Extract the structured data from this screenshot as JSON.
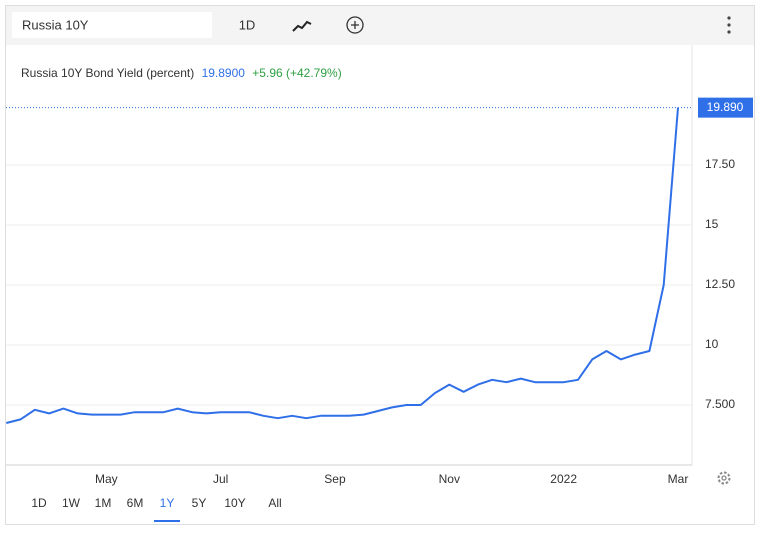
{
  "toolbar": {
    "symbol": "Russia 10Y",
    "interval": "1D"
  },
  "chart_data": {
    "type": "line",
    "title": "Russia 10Y Bond Yield (percent)",
    "last_value": "19.8900",
    "change": "+5.96 (+42.79%)",
    "last_label": "19.890",
    "categories": [
      null,
      null,
      null,
      null,
      null,
      null,
      null,
      "May",
      null,
      null,
      null,
      null,
      null,
      null,
      null,
      "Jul",
      null,
      null,
      null,
      null,
      null,
      null,
      null,
      "Sep",
      null,
      null,
      null,
      null,
      null,
      null,
      null,
      "Nov",
      null,
      null,
      null,
      null,
      null,
      null,
      null,
      "2022",
      null,
      null,
      null,
      null,
      null,
      null,
      null,
      "Mar"
    ],
    "values": [
      6.75,
      6.9,
      7.3,
      7.15,
      7.35,
      7.15,
      7.1,
      7.1,
      7.1,
      7.2,
      7.2,
      7.2,
      7.35,
      7.2,
      7.15,
      7.2,
      7.2,
      7.2,
      7.05,
      6.95,
      7.05,
      6.95,
      7.05,
      7.05,
      7.05,
      7.1,
      7.25,
      7.4,
      7.5,
      7.5,
      8.0,
      8.35,
      8.05,
      8.35,
      8.55,
      8.45,
      8.6,
      8.45,
      8.45,
      8.45,
      8.55,
      9.4,
      9.75,
      9.4,
      9.6,
      9.75,
      12.5,
      19.89
    ],
    "color": "#2f6fe8",
    "ylim": [
      5,
      22.5
    ],
    "yticks": [
      {
        "value": 7.5,
        "label": "7.500"
      },
      10,
      {
        "value": 12.5,
        "label": "12.50"
      },
      15,
      {
        "value": 17.5,
        "label": "17.50"
      }
    ],
    "grid": true
  },
  "ranges": [
    "1D",
    "1W",
    "1M",
    "6M",
    "1Y",
    "5Y",
    "10Y",
    "All"
  ],
  "selected_range": "1Y"
}
